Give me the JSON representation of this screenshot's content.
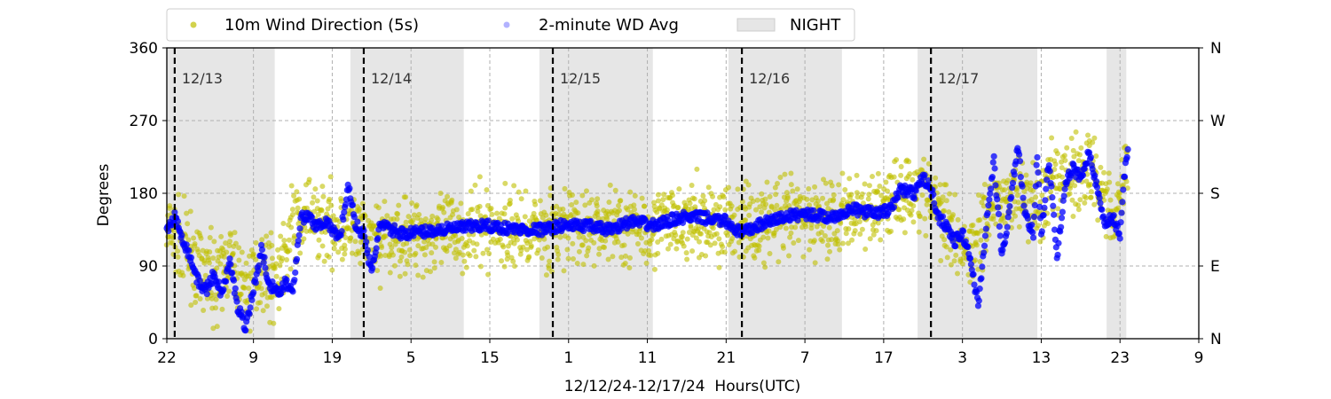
{
  "chart_data": {
    "type": "scatter",
    "xlabel": "12/12/24-12/17/24  Hours(UTC)",
    "ylabel": "Degrees",
    "x_range_hours": [
      0,
      131
    ],
    "x_tick_labels": [
      {
        "h": 0,
        "label": "22"
      },
      {
        "h": 11,
        "label": "9"
      },
      {
        "h": 21,
        "label": "19"
      },
      {
        "h": 31,
        "label": "5"
      },
      {
        "h": 41,
        "label": "15"
      },
      {
        "h": 51,
        "label": "1"
      },
      {
        "h": 61,
        "label": "11"
      },
      {
        "h": 71,
        "label": "21"
      },
      {
        "h": 81,
        "label": "7"
      },
      {
        "h": 91,
        "label": "17"
      },
      {
        "h": 101,
        "label": "3"
      },
      {
        "h": 111,
        "label": "13"
      },
      {
        "h": 121,
        "label": "23"
      },
      {
        "h": 131,
        "label": "9"
      }
    ],
    "ylim": [
      0,
      360
    ],
    "y_ticks": [
      0,
      90,
      180,
      270,
      360
    ],
    "y2_tick_labels": [
      {
        "v": 0,
        "label": "N"
      },
      {
        "v": 90,
        "label": "E"
      },
      {
        "v": 180,
        "label": "S"
      },
      {
        "v": 270,
        "label": "W"
      },
      {
        "v": 360,
        "label": "N"
      }
    ],
    "grid": true,
    "legend_position": "top-left, above plot",
    "legend": [
      {
        "label": "10m Wind Direction (5s)",
        "color": "#bfbf00",
        "marker": "dot"
      },
      {
        "label": "2-minute WD Avg",
        "color": "#0000ff",
        "marker": "dot-translucent"
      },
      {
        "label": "NIGHT",
        "color": "#e6e6e6",
        "marker": "patch"
      }
    ],
    "day_markers": [
      {
        "h": 1,
        "label": "12/13"
      },
      {
        "h": 25,
        "label": "12/14"
      },
      {
        "h": 49,
        "label": "12/15"
      },
      {
        "h": 73,
        "label": "12/16"
      },
      {
        "h": 97,
        "label": "12/17"
      }
    ],
    "night_periods": [
      [
        0,
        13.7
      ],
      [
        23.3,
        37.7
      ],
      [
        47.3,
        61.7
      ],
      [
        71.3,
        85.7
      ],
      [
        95.3,
        110.5
      ],
      [
        119.3,
        121.8
      ]
    ],
    "series_avg": {
      "name": "2-minute WD Avg",
      "points": [
        [
          0,
          135
        ],
        [
          1,
          150
        ],
        [
          2,
          125
        ],
        [
          3,
          100
        ],
        [
          4,
          70
        ],
        [
          5,
          60
        ],
        [
          6,
          80
        ],
        [
          7,
          55
        ],
        [
          8,
          95
        ],
        [
          9,
          40
        ],
        [
          10,
          15
        ],
        [
          11,
          60
        ],
        [
          12,
          110
        ],
        [
          13,
          70
        ],
        [
          14,
          55
        ],
        [
          15,
          70
        ],
        [
          16,
          60
        ],
        [
          17,
          150
        ],
        [
          18,
          150
        ],
        [
          19,
          140
        ],
        [
          20,
          145
        ],
        [
          21,
          135
        ],
        [
          22,
          125
        ],
        [
          23,
          190
        ],
        [
          24,
          140
        ],
        [
          25,
          130
        ],
        [
          26,
          80
        ],
        [
          27,
          140
        ],
        [
          30,
          130
        ],
        [
          35,
          135
        ],
        [
          40,
          140
        ],
        [
          45,
          135
        ],
        [
          48,
          135
        ],
        [
          50,
          140
        ],
        [
          53,
          140
        ],
        [
          56,
          135
        ],
        [
          59,
          145
        ],
        [
          62,
          140
        ],
        [
          65,
          150
        ],
        [
          68,
          150
        ],
        [
          71,
          145
        ],
        [
          73,
          130
        ],
        [
          75,
          140
        ],
        [
          78,
          150
        ],
        [
          81,
          155
        ],
        [
          84,
          150
        ],
        [
          87,
          160
        ],
        [
          90,
          155
        ],
        [
          92,
          160
        ],
        [
          93,
          185
        ],
        [
          95,
          180
        ],
        [
          96,
          200
        ],
        [
          97,
          185
        ],
        [
          98,
          150
        ],
        [
          99,
          140
        ],
        [
          100,
          120
        ],
        [
          101,
          130
        ],
        [
          102,
          100
        ],
        [
          103,
          40
        ],
        [
          104,
          140
        ],
        [
          105,
          220
        ],
        [
          106,
          100
        ],
        [
          107,
          160
        ],
        [
          108,
          240
        ],
        [
          109,
          150
        ],
        [
          110,
          130
        ],
        [
          110.5,
          230
        ],
        [
          111,
          130
        ],
        [
          112,
          220
        ],
        [
          113,
          100
        ],
        [
          114,
          190
        ],
        [
          115,
          210
        ],
        [
          116,
          200
        ],
        [
          117,
          230
        ],
        [
          118,
          190
        ],
        [
          119,
          140
        ],
        [
          120,
          150
        ],
        [
          121,
          130
        ],
        [
          121.5,
          200
        ],
        [
          122,
          230
        ]
      ]
    },
    "series_5s": {
      "name": "10m Wind Direction (5s)",
      "points": [
        [
          0,
          130
        ],
        [
          2,
          120
        ],
        [
          4,
          85
        ],
        [
          6,
          75
        ],
        [
          8,
          95
        ],
        [
          10,
          60
        ],
        [
          12,
          90
        ],
        [
          14,
          75
        ],
        [
          16,
          140
        ],
        [
          18,
          150
        ],
        [
          20,
          145
        ],
        [
          22,
          140
        ],
        [
          24,
          130
        ],
        [
          26,
          120
        ],
        [
          28,
          125
        ],
        [
          30,
          130
        ],
        [
          35,
          130
        ],
        [
          40,
          135
        ],
        [
          45,
          135
        ],
        [
          50,
          135
        ],
        [
          55,
          140
        ],
        [
          60,
          140
        ],
        [
          65,
          145
        ],
        [
          70,
          145
        ],
        [
          75,
          140
        ],
        [
          80,
          150
        ],
        [
          85,
          150
        ],
        [
          90,
          160
        ],
        [
          93,
          180
        ],
        [
          96,
          185
        ],
        [
          99,
          145
        ],
        [
          102,
          110
        ],
        [
          105,
          170
        ],
        [
          108,
          180
        ],
        [
          111,
          170
        ],
        [
          114,
          200
        ],
        [
          117,
          210
        ],
        [
          120,
          160
        ],
        [
          122,
          210
        ]
      ],
      "spread_degrees": 40
    }
  }
}
